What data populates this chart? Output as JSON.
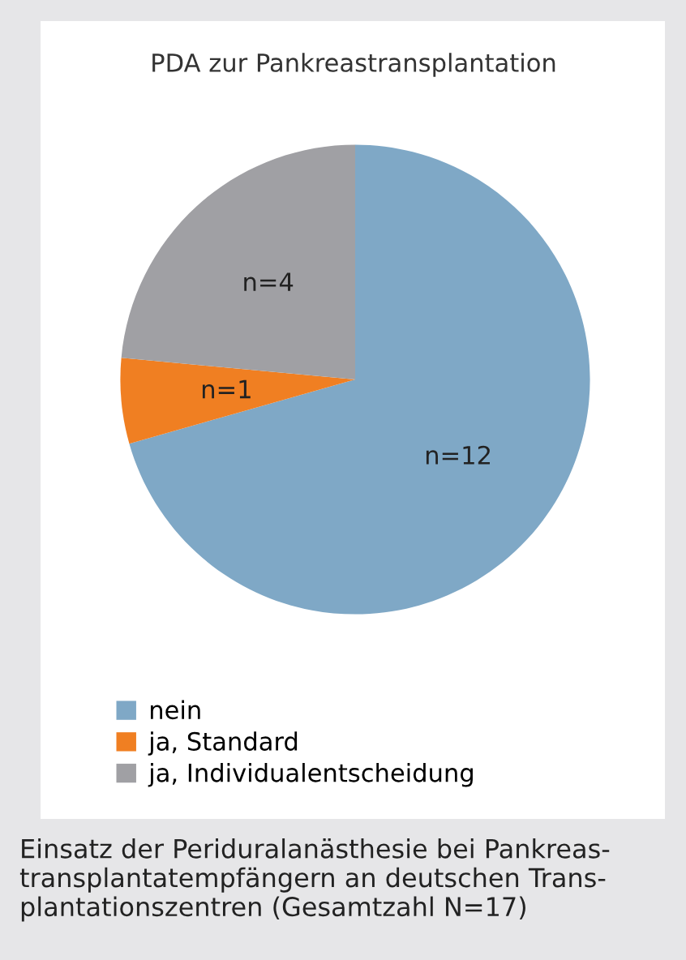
{
  "chart_data": {
    "type": "pie",
    "title": "PDA zur Pankreastransplantation",
    "categories": [
      "nein",
      "ja, Standard",
      "ja, Individualentscheidung"
    ],
    "values": [
      12,
      1,
      4
    ],
    "colors": [
      "#7fa8c6",
      "#f07f22",
      "#a0a0a4"
    ],
    "value_labels": [
      "n=12",
      "n=1",
      "n=4"
    ],
    "legend": "bottom",
    "annotations": [
      "Einsatz der Periduralanästhesie bei Pankreas-\ntransplantatempfängern an deutschen Trans-\nplantationszentren (Gesamtzahl N=17)"
    ]
  }
}
